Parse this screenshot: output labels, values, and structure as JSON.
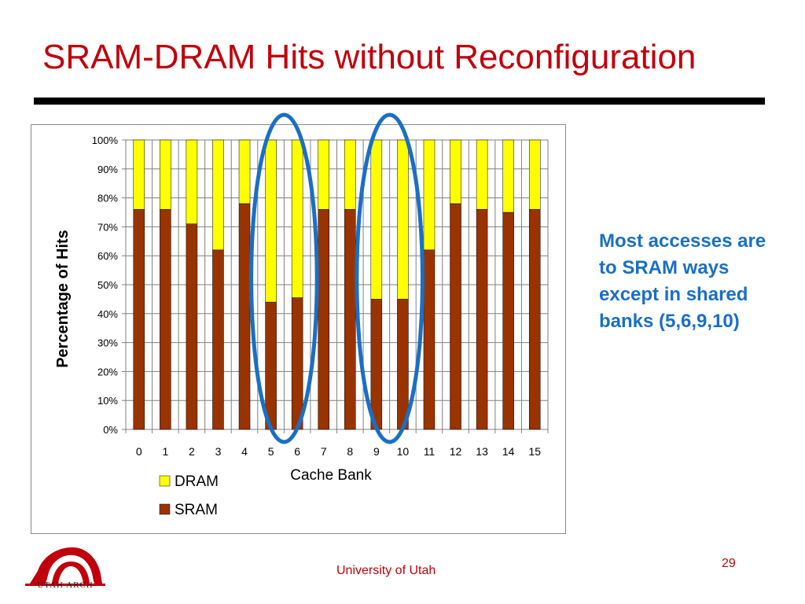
{
  "slide": {
    "title": "SRAM-DRAM Hits without Reconfiguration",
    "side_note": "Most accesses are to SRAM ways except in shared banks (5,6,9,10)",
    "footer": "University of Utah",
    "page_number": "29",
    "logo_text": "UTAH ARCH"
  },
  "colors": {
    "title": "#c0000c",
    "note": "#1a6fc4",
    "sram": "#993300",
    "dram": "#ffff00",
    "highlight": "#1a6fc4"
  },
  "chart_data": {
    "type": "bar",
    "stacked": true,
    "categories": [
      "0",
      "1",
      "2",
      "3",
      "4",
      "5",
      "6",
      "7",
      "8",
      "9",
      "10",
      "11",
      "12",
      "13",
      "14",
      "15"
    ],
    "series": [
      {
        "name": "SRAM",
        "values": [
          76,
          76,
          71,
          62,
          78,
          44,
          45.5,
          76,
          76,
          45,
          45,
          62,
          78,
          76,
          75,
          76
        ]
      },
      {
        "name": "DRAM",
        "values": [
          24,
          24,
          29,
          38,
          22,
          56,
          54.5,
          24,
          24,
          55,
          55,
          38,
          22,
          24,
          25,
          24
        ]
      }
    ],
    "xlabel": "Cache Bank",
    "ylabel": "Percentage of Hits",
    "ylim": [
      0,
      100
    ],
    "yticks": [
      "0%",
      "10%",
      "20%",
      "30%",
      "40%",
      "50%",
      "60%",
      "70%",
      "80%",
      "90%",
      "100%"
    ],
    "legend": [
      "DRAM",
      "SRAM"
    ],
    "legend_position": "bottom-left",
    "grid": true,
    "highlighted_categories": [
      [
        "5",
        "6"
      ],
      [
        "9",
        "10"
      ]
    ]
  }
}
